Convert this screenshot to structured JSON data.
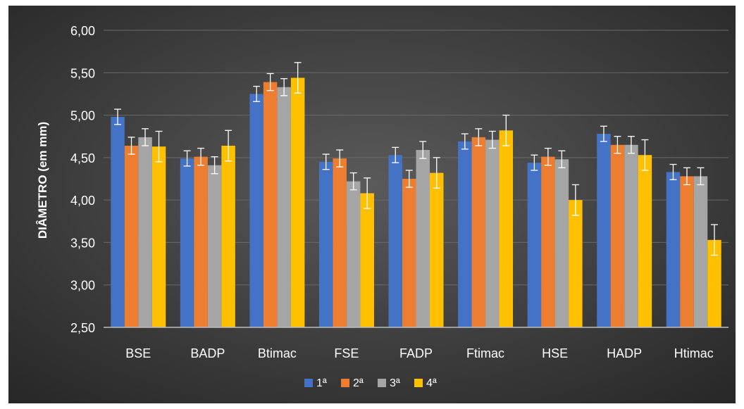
{
  "chart_data": {
    "type": "bar",
    "title": "",
    "xlabel": "",
    "ylabel": "DIÂMETRO (em mm)",
    "ylim": [
      2.5,
      6.0
    ],
    "yticks": [
      2.5,
      3.0,
      3.5,
      4.0,
      4.5,
      5.0,
      5.5,
      6.0
    ],
    "ytick_labels": [
      "2,50",
      "3,00",
      "3,50",
      "4,00",
      "4,50",
      "5,00",
      "5,50",
      "6,00"
    ],
    "grid": true,
    "legend_position": "bottom",
    "categories": [
      "BSE",
      "BADP",
      "Btimac",
      "FSE",
      "FADP",
      "Ftimac",
      "HSE",
      "HADP",
      "Htimac"
    ],
    "series": [
      {
        "name": "1ª",
        "color": "#4472C4",
        "values": [
          4.98,
          4.49,
          5.25,
          4.45,
          4.53,
          4.69,
          4.44,
          4.78,
          4.33
        ],
        "errors": [
          0.09,
          0.09,
          0.09,
          0.09,
          0.09,
          0.09,
          0.09,
          0.09,
          0.09
        ]
      },
      {
        "name": "2ª",
        "color": "#ED7D31",
        "values": [
          4.64,
          4.51,
          5.39,
          4.49,
          4.25,
          4.74,
          4.51,
          4.65,
          4.28
        ],
        "errors": [
          0.1,
          0.1,
          0.1,
          0.1,
          0.1,
          0.1,
          0.1,
          0.1,
          0.1
        ]
      },
      {
        "name": "3ª",
        "color": "#A5A5A5",
        "values": [
          4.74,
          4.41,
          5.33,
          4.22,
          4.59,
          4.71,
          4.48,
          4.65,
          4.28
        ],
        "errors": [
          0.1,
          0.1,
          0.1,
          0.1,
          0.1,
          0.1,
          0.1,
          0.1,
          0.1
        ]
      },
      {
        "name": "4ª",
        "color": "#FFC000",
        "values": [
          4.63,
          4.64,
          5.44,
          4.08,
          4.32,
          4.82,
          4.0,
          4.53,
          3.53
        ],
        "errors": [
          0.18,
          0.18,
          0.18,
          0.18,
          0.18,
          0.18,
          0.18,
          0.18,
          0.18
        ]
      }
    ]
  }
}
